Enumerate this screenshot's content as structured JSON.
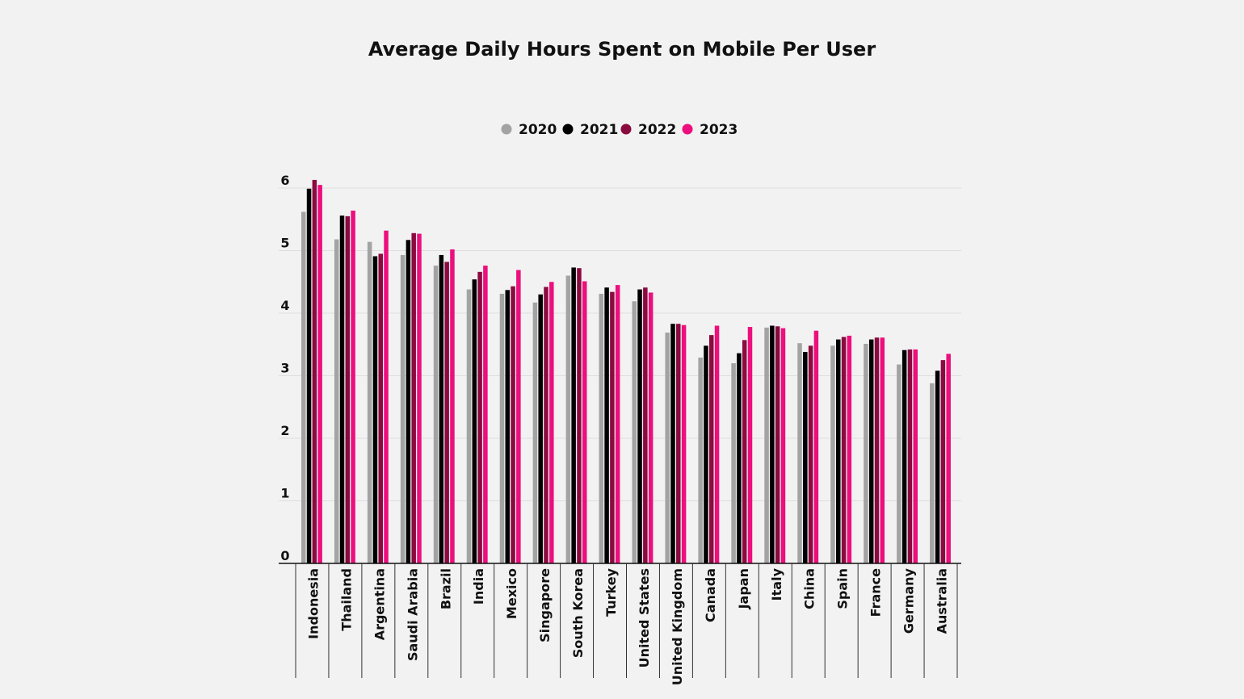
{
  "chart_data": {
    "type": "bar",
    "title": "Average Daily Hours Spent on Mobile Per User",
    "xlabel": "",
    "ylabel": "",
    "ylim": [
      0,
      6
    ],
    "yticks": [
      0,
      1,
      2,
      3,
      4,
      5,
      6
    ],
    "grid": true,
    "legend": "top-center",
    "categories": [
      "Indonesia",
      "Thailand",
      "Argentina",
      "Saudi Arabia",
      "Brazil",
      "India",
      "Mexico",
      "Singapore",
      "South Korea",
      "Turkey",
      "United States",
      "United Kingdom",
      "Canada",
      "Japan",
      "Italy",
      "China",
      "Spain",
      "France",
      "Germany",
      "Australia"
    ],
    "series": [
      {
        "name": "2020",
        "color": "#a3a3a3",
        "values": [
          5.62,
          5.18,
          5.14,
          4.93,
          4.76,
          4.38,
          4.31,
          4.17,
          4.6,
          4.31,
          4.19,
          3.69,
          3.29,
          3.2,
          3.77,
          3.52,
          3.48,
          3.51,
          3.18,
          2.88
        ]
      },
      {
        "name": "2021",
        "color": "#000000",
        "values": [
          5.99,
          5.56,
          4.91,
          5.17,
          4.93,
          4.54,
          4.37,
          4.3,
          4.73,
          4.41,
          4.38,
          3.83,
          3.48,
          3.36,
          3.8,
          3.38,
          3.58,
          3.58,
          3.41,
          3.08
        ]
      },
      {
        "name": "2022",
        "color": "#8b0a3f",
        "values": [
          6.13,
          5.55,
          4.95,
          5.28,
          4.82,
          4.66,
          4.43,
          4.42,
          4.72,
          4.34,
          4.41,
          3.83,
          3.65,
          3.57,
          3.79,
          3.48,
          3.62,
          3.61,
          3.42,
          3.25
        ]
      },
      {
        "name": "2023",
        "color": "#ec0f7d",
        "values": [
          6.05,
          5.64,
          5.32,
          5.27,
          5.02,
          4.76,
          4.69,
          4.5,
          4.51,
          4.45,
          4.33,
          3.81,
          3.8,
          3.78,
          3.76,
          3.72,
          3.64,
          3.61,
          3.42,
          3.35
        ]
      }
    ]
  }
}
